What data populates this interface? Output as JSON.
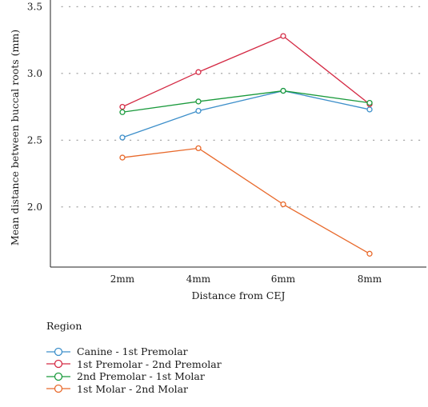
{
  "chart_data": {
    "type": "line",
    "categories": [
      "2mm",
      "4mm",
      "6mm",
      "8mm"
    ],
    "series": [
      {
        "name": "Canine - 1st Premolar",
        "color": "#3d8fca",
        "values": [
          2.52,
          2.72,
          2.87,
          2.73
        ]
      },
      {
        "name": "1st Premolar - 2nd Premolar",
        "color": "#d42a44",
        "values": [
          2.75,
          3.01,
          3.28,
          2.77
        ]
      },
      {
        "name": "2nd Premolar - 1st Molar",
        "color": "#1a9a3c",
        "values": [
          2.71,
          2.79,
          2.87,
          2.78
        ]
      },
      {
        "name": "1st Molar - 2nd Molar",
        "color": "#e8692b",
        "values": [
          2.37,
          2.44,
          2.02,
          1.65
        ]
      }
    ],
    "title": "",
    "xlabel": "Distance from CEJ",
    "ylabel": "Mean distance between buccal roots (mm)",
    "yticks": [
      "2.0",
      "2.5",
      "3.0",
      "3.5"
    ],
    "ylim": [
      1.55,
      3.55
    ],
    "grid": "dotted horizontal",
    "legend": {
      "title": "Region",
      "position": "bottom-left"
    }
  }
}
